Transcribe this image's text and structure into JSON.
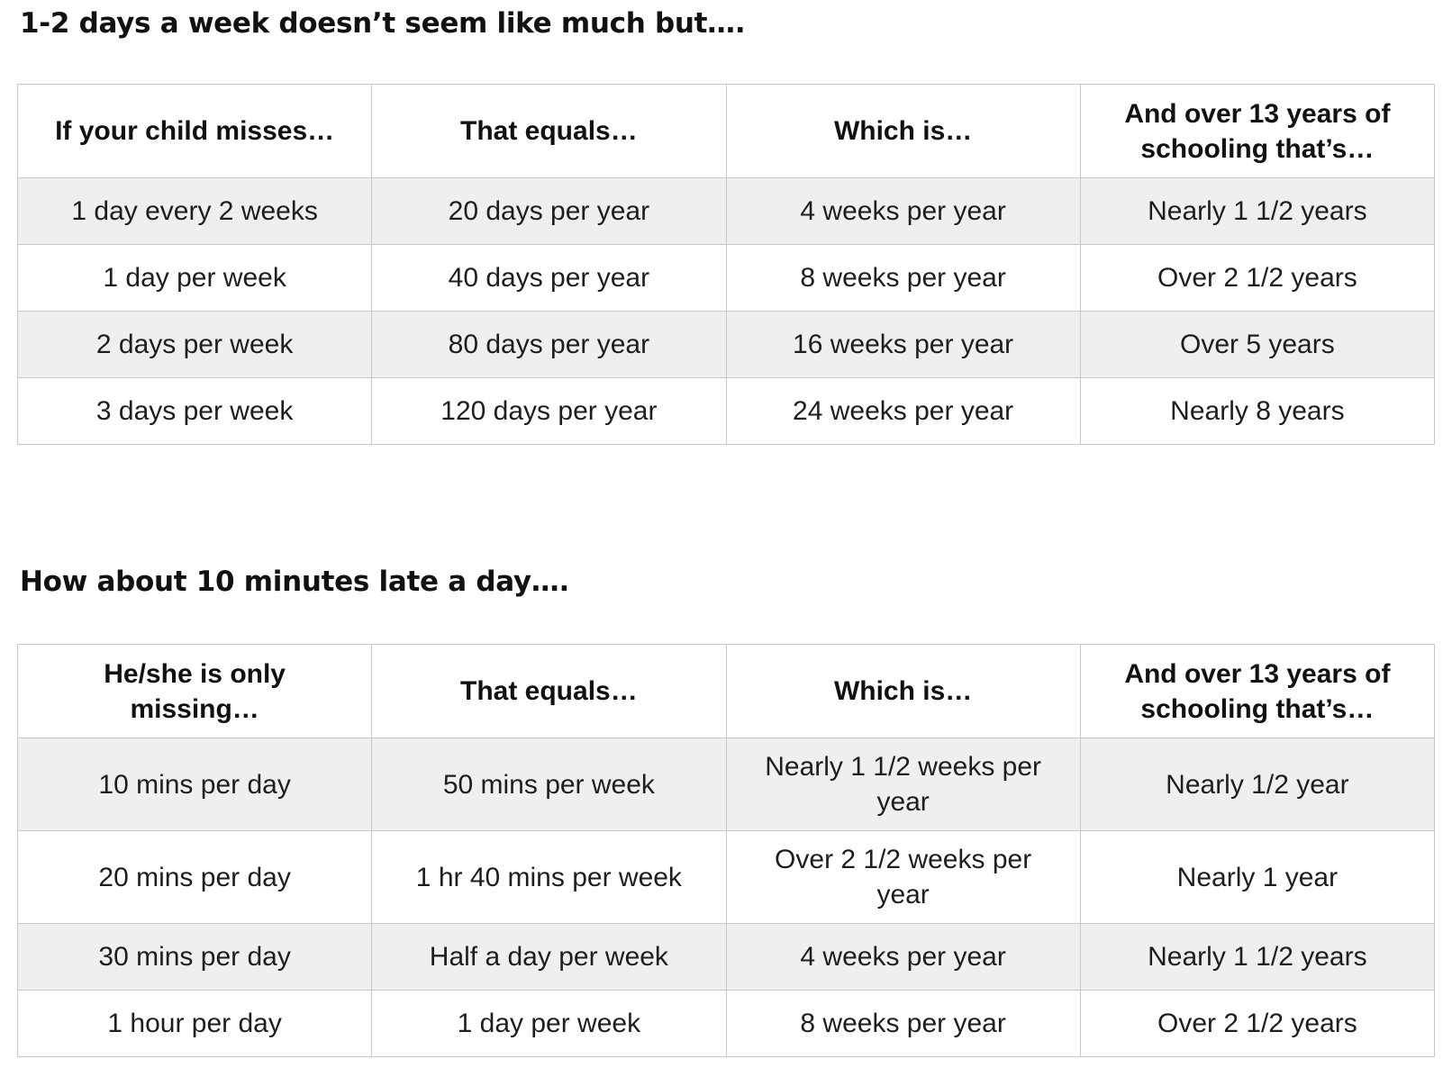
{
  "section1": {
    "title": "1-2 days a week doesn’t seem like much but….",
    "headers": [
      "If your child misses…",
      "That equals…",
      "Which is…",
      "And over 13 years of schooling that’s…"
    ],
    "rows": [
      [
        "1 day every 2 weeks",
        "20 days per year",
        "4 weeks per year",
        "Nearly 1 1/2 years"
      ],
      [
        "1 day per week",
        "40 days per year",
        "8 weeks per year",
        "Over 2 1/2 years"
      ],
      [
        "2 days per week",
        "80 days per year",
        "16 weeks per year",
        "Over 5 years"
      ],
      [
        "3 days per week",
        "120 days per year",
        "24 weeks per year",
        "Nearly 8 years"
      ]
    ]
  },
  "section2": {
    "title": "How about 10 minutes late a day….",
    "headers": [
      "He/she is only missing…",
      "That equals…",
      "Which is…",
      "And over 13 years of schooling that’s…"
    ],
    "rows": [
      [
        "10 mins per day",
        "50 mins per week",
        "Nearly 1 1/2 weeks per year",
        "Nearly 1/2 year"
      ],
      [
        "20 mins per day",
        "1 hr 40 mins per week",
        "Over 2 1/2 weeks per year",
        "Nearly 1 year"
      ],
      [
        "30 mins per day",
        "Half a day per week",
        "4 weeks per year",
        "Nearly 1 1/2 years"
      ],
      [
        "1 hour per day",
        "1 day per week",
        "8 weeks per year",
        "Over 2 1/2 years"
      ]
    ]
  }
}
